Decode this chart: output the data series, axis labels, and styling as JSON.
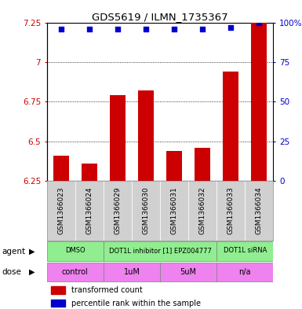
{
  "title": "GDS5619 / ILMN_1735367",
  "samples": [
    "GSM1366023",
    "GSM1366024",
    "GSM1366029",
    "GSM1366030",
    "GSM1366031",
    "GSM1366032",
    "GSM1366033",
    "GSM1366034"
  ],
  "bar_values": [
    6.41,
    6.36,
    6.79,
    6.82,
    6.44,
    6.46,
    6.94,
    7.25
  ],
  "percentile_values": [
    96,
    96,
    96,
    96,
    96,
    96,
    97,
    100
  ],
  "bar_color": "#cc0000",
  "dot_color": "#0000cc",
  "ylim": [
    6.25,
    7.25
  ],
  "y2lim": [
    0,
    100
  ],
  "yticks": [
    6.25,
    6.5,
    6.75,
    7.0,
    7.25
  ],
  "y2ticks": [
    0,
    25,
    50,
    75,
    100
  ],
  "ytick_labels": [
    "6.25",
    "6.5",
    "6.75",
    "7",
    "7.25"
  ],
  "y2tick_labels": [
    "0",
    "25",
    "50",
    "75",
    "100%"
  ],
  "grid_values": [
    6.5,
    6.75,
    7.0
  ],
  "agent_groups": [
    {
      "label": "DMSO",
      "start": 0,
      "end": 2,
      "color": "#90ee90"
    },
    {
      "label": "DOT1L inhibitor [1] EPZ004777",
      "start": 2,
      "end": 6,
      "color": "#90ee90"
    },
    {
      "label": "DOT1L siRNA",
      "start": 6,
      "end": 8,
      "color": "#90ee90"
    }
  ],
  "dose_groups": [
    {
      "label": "control",
      "start": 0,
      "end": 2,
      "color": "#ee82ee"
    },
    {
      "label": "1uM",
      "start": 2,
      "end": 4,
      "color": "#ee82ee"
    },
    {
      "label": "5uM",
      "start": 4,
      "end": 6,
      "color": "#ee82ee"
    },
    {
      "label": "n/a",
      "start": 6,
      "end": 8,
      "color": "#ee82ee"
    }
  ],
  "legend_bar_label": "transformed count",
  "legend_dot_label": "percentile rank within the sample",
  "left_label_color": "#cc0000",
  "right_label_color": "#0000cc",
  "agent_label": "agent",
  "dose_label": "dose",
  "sample_box_color": "#d0d0d0"
}
